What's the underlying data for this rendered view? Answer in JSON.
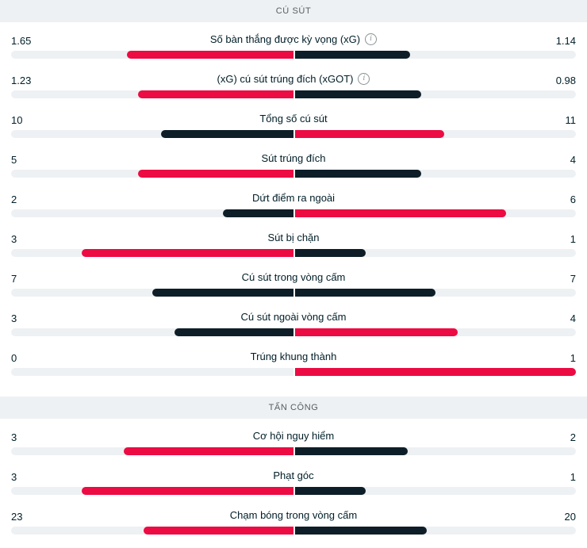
{
  "colors": {
    "win": "#ec0b43",
    "lose": "#0d1e28",
    "track": "#eef1f3"
  },
  "sections": [
    {
      "id": "shots",
      "title": "CÚ SÚT",
      "rows": [
        {
          "label": "Số bàn thắng được kỳ vọng (xG)",
          "home": "1.65",
          "away": "1.14",
          "home_frac": 0.59,
          "away_frac": 0.41,
          "info": true
        },
        {
          "label": "(xG) cú sút trúng đích (xGOT)",
          "home": "1.23",
          "away": "0.98",
          "home_frac": 0.55,
          "away_frac": 0.45,
          "info": true
        },
        {
          "label": "Tổng số cú sút",
          "home": "10",
          "away": "11",
          "home_frac": 0.47,
          "away_frac": 0.53,
          "info": false
        },
        {
          "label": "Sút trúng đích",
          "home": "5",
          "away": "4",
          "home_frac": 0.55,
          "away_frac": 0.45,
          "info": false
        },
        {
          "label": "Dứt điểm ra ngoài",
          "home": "2",
          "away": "6",
          "home_frac": 0.25,
          "away_frac": 0.75,
          "info": false
        },
        {
          "label": "Sút bị chặn",
          "home": "3",
          "away": "1",
          "home_frac": 0.75,
          "away_frac": 0.25,
          "info": false
        },
        {
          "label": "Cú sút trong vòng cấm",
          "home": "7",
          "away": "7",
          "home_frac": 0.5,
          "away_frac": 0.5,
          "info": false,
          "tie": true
        },
        {
          "label": "Cú sút ngoài vòng cấm",
          "home": "3",
          "away": "4",
          "home_frac": 0.42,
          "away_frac": 0.58,
          "info": false
        },
        {
          "label": "Trúng khung thành",
          "home": "0",
          "away": "1",
          "home_frac": 0.0,
          "away_frac": 1.0,
          "info": false
        }
      ]
    },
    {
      "id": "attack",
      "title": "TẤN CÔNG",
      "rows": [
        {
          "label": "Cơ hội nguy hiểm",
          "home": "3",
          "away": "2",
          "home_frac": 0.6,
          "away_frac": 0.4,
          "info": false
        },
        {
          "label": "Phạt góc",
          "home": "3",
          "away": "1",
          "home_frac": 0.75,
          "away_frac": 0.25,
          "info": false
        },
        {
          "label": "Chạm bóng trong vòng cấm",
          "home": "23",
          "away": "20",
          "home_frac": 0.53,
          "away_frac": 0.47,
          "info": false
        }
      ]
    }
  ]
}
